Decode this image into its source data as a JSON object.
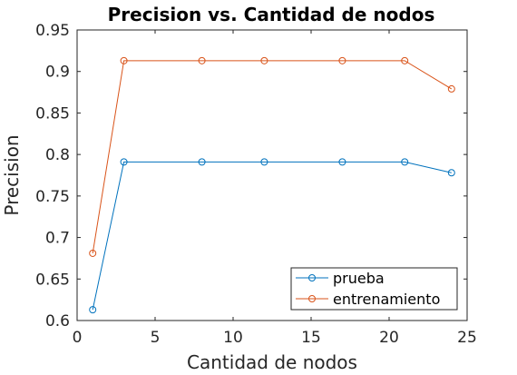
{
  "chart_data": {
    "type": "line",
    "title": "Precision vs. Cantidad de nodos",
    "xlabel": "Cantidad de nodos",
    "ylabel": "Precision",
    "xlim": [
      0,
      25
    ],
    "ylim": [
      0.6,
      0.95
    ],
    "xticks": [
      0,
      5,
      10,
      15,
      20,
      25
    ],
    "xtick_labels": [
      "0",
      "5",
      "10",
      "15",
      "20",
      "25"
    ],
    "yticks": [
      0.6,
      0.65,
      0.7,
      0.75,
      0.8,
      0.85,
      0.9,
      0.95
    ],
    "ytick_labels": [
      "0.6",
      "0.65",
      "0.7",
      "0.75",
      "0.8",
      "0.85",
      "0.9",
      "0.95"
    ],
    "grid": false,
    "legend_position": "bottom-right",
    "x": [
      1,
      3,
      8,
      12,
      17,
      21,
      24
    ],
    "series": [
      {
        "name": "prueba",
        "color": "#0072bd",
        "marker": "circle",
        "values": [
          0.613,
          0.791,
          0.791,
          0.791,
          0.791,
          0.791,
          0.778
        ]
      },
      {
        "name": "entrenamiento",
        "color": "#d95319",
        "marker": "circle",
        "values": [
          0.681,
          0.913,
          0.913,
          0.913,
          0.913,
          0.913,
          0.879
        ]
      }
    ]
  }
}
